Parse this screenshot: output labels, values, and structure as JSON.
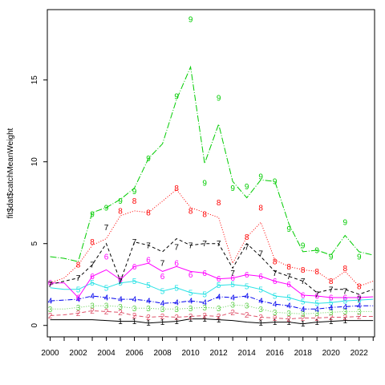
{
  "chart_data": {
    "type": "line",
    "title": "",
    "xlabel": "",
    "ylabel": "fit$dat$catchMeanWeight",
    "xlim": [
      1999.8,
      2023.1
    ],
    "ylim": [
      -0.7,
      19.3
    ],
    "grid": false,
    "legend": "none",
    "x_ticks": [
      "2000",
      "2002",
      "2004",
      "2006",
      "2008",
      "2010",
      "2012",
      "2014",
      "2016",
      "2018",
      "2020",
      "2022"
    ],
    "y_ticks": [
      "0",
      "5",
      "10",
      "15"
    ],
    "x": [
      2000,
      2001,
      2002,
      2003,
      2004,
      2005,
      2006,
      2007,
      2008,
      2009,
      2010,
      2011,
      2012,
      2013,
      2014,
      2015,
      2016,
      2017,
      2018,
      2019,
      2020,
      2021,
      2022,
      2023
    ],
    "series": [
      {
        "label": "1",
        "color": "#000000",
        "dash": "",
        "values": [
          null,
          null,
          null,
          null,
          null,
          0.25,
          0.25,
          0.15,
          0.2,
          0.25,
          0.4,
          0.4,
          0.35,
          null,
          null,
          0.15,
          0.2,
          0.2,
          0.1,
          0.2,
          0.25,
          0.3,
          null,
          null
        ],
        "line": [
          0.35,
          0.35,
          0.35,
          0.35,
          0.3,
          0.25,
          0.25,
          0.15,
          0.2,
          0.25,
          0.4,
          0.4,
          0.35,
          0.3,
          0.2,
          0.15,
          0.2,
          0.2,
          0.1,
          0.2,
          0.25,
          0.3,
          0.3,
          0.3
        ]
      },
      {
        "label": "2",
        "color": "#df536b",
        "dash": "5,3",
        "values": [
          0.6,
          null,
          0.75,
          0.9,
          0.85,
          0.8,
          0.6,
          0.5,
          0.55,
          0.5,
          0.55,
          0.6,
          0.55,
          0.8,
          0.65,
          0.5,
          0.45,
          0.4,
          0.45,
          0.45,
          0.5,
          0.5,
          0.55,
          null
        ],
        "line": [
          0.6,
          0.65,
          0.75,
          0.9,
          0.85,
          0.8,
          0.6,
          0.5,
          0.55,
          0.5,
          0.55,
          0.6,
          0.55,
          0.8,
          0.65,
          0.5,
          0.45,
          0.4,
          0.45,
          0.45,
          0.5,
          0.5,
          0.55,
          0.55
        ]
      },
      {
        "label": "3",
        "color": "#61d04f",
        "dash": "1,2",
        "values": [
          1.0,
          null,
          1.1,
          1.2,
          1.2,
          1.15,
          1.05,
          1.05,
          1.0,
          1.0,
          1.05,
          1.1,
          1.05,
          1.25,
          1.2,
          1.0,
          0.8,
          0.75,
          0.7,
          0.75,
          0.8,
          0.85,
          0.85,
          null
        ],
        "line": [
          1.0,
          1.0,
          1.1,
          1.2,
          1.2,
          1.15,
          1.05,
          1.05,
          1.0,
          1.0,
          1.05,
          1.1,
          1.05,
          1.25,
          1.2,
          1.0,
          0.8,
          0.75,
          0.7,
          0.75,
          0.8,
          0.85,
          0.85,
          0.85
        ]
      },
      {
        "label": "4",
        "color": "#2297e6",
        "dash": "6,2,1,2",
        "values": [
          1.5,
          null,
          1.6,
          1.8,
          1.7,
          1.6,
          1.6,
          1.5,
          1.35,
          1.4,
          1.5,
          1.4,
          1.75,
          1.7,
          1.8,
          1.5,
          1.3,
          1.2,
          1.0,
          1.0,
          1.1,
          1.15,
          1.2,
          null
        ],
        "line": [
          1.5,
          1.55,
          1.6,
          1.8,
          1.7,
          1.6,
          1.6,
          1.5,
          1.35,
          1.4,
          1.5,
          1.4,
          1.75,
          1.7,
          1.8,
          1.5,
          1.3,
          1.2,
          1.0,
          1.0,
          1.1,
          1.15,
          1.2,
          1.2
        ],
        "pt_color": "#0000ee",
        "line_color": "#0000ee"
      },
      {
        "label": "5",
        "color": "#28e2e5",
        "dash": "",
        "values": [
          null,
          null,
          2.2,
          2.6,
          2.3,
          2.6,
          2.7,
          2.45,
          2.1,
          2.3,
          2.0,
          1.9,
          2.45,
          2.5,
          2.4,
          2.2,
          1.8,
          1.7,
          1.45,
          1.35,
          1.4,
          1.5,
          1.55,
          null
        ],
        "line": [
          2.3,
          2.2,
          2.2,
          2.6,
          2.3,
          2.6,
          2.7,
          2.45,
          2.1,
          2.3,
          2.0,
          1.9,
          2.45,
          2.5,
          2.4,
          2.2,
          1.8,
          1.7,
          1.45,
          1.35,
          1.4,
          1.5,
          1.55,
          1.6
        ]
      },
      {
        "label": "6",
        "color": "#cd0bbc",
        "dash": "",
        "values": [
          2.6,
          null,
          1.7,
          3.0,
          4.2,
          2.8,
          3.6,
          4.0,
          3.0,
          3.8,
          3.1,
          3.2,
          2.85,
          2.9,
          3.1,
          3.0,
          2.7,
          2.5,
          1.85,
          1.8,
          1.7,
          1.7,
          1.7,
          null
        ],
        "line": [
          2.6,
          2.6,
          1.7,
          3.0,
          3.4,
          2.8,
          3.6,
          3.8,
          3.3,
          3.6,
          3.3,
          3.2,
          2.85,
          2.9,
          3.1,
          3.0,
          2.7,
          2.5,
          1.85,
          1.8,
          1.7,
          1.7,
          1.7,
          1.75
        ],
        "pt_color": "#ff00ff",
        "line_color": "#ff00ff"
      },
      {
        "label": "7",
        "color": "#000000",
        "dash": "4,3",
        "values": [
          2.5,
          null,
          2.9,
          3.7,
          6.0,
          2.7,
          5.1,
          4.9,
          3.8,
          4.8,
          4.9,
          5.0,
          5.0,
          3.2,
          4.8,
          4.4,
          3.2,
          3.0,
          2.7,
          1.9,
          2.2,
          2.1,
          1.6,
          null
        ],
        "line": [
          2.5,
          2.7,
          2.9,
          3.7,
          5.0,
          2.7,
          5.1,
          4.9,
          4.5,
          5.3,
          4.9,
          5.0,
          5.0,
          3.5,
          5.0,
          4.2,
          3.3,
          3.0,
          2.7,
          2.0,
          2.2,
          2.2,
          1.9,
          2.2
        ]
      },
      {
        "label": "8",
        "color": "#ff0000",
        "dash": "1,2",
        "values": [
          null,
          null,
          3.7,
          5.1,
          null,
          7.0,
          7.6,
          6.9,
          null,
          8.4,
          7.0,
          6.8,
          7.5,
          null,
          5.4,
          7.2,
          3.9,
          3.6,
          3.4,
          3.3,
          2.7,
          3.5,
          2.4,
          null
        ],
        "line": [
          2.6,
          2.9,
          3.7,
          4.9,
          5.3,
          6.7,
          7.0,
          6.9,
          7.6,
          8.3,
          7.2,
          6.9,
          6.6,
          3.8,
          5.4,
          6.3,
          4.0,
          3.6,
          3.4,
          3.3,
          2.7,
          3.3,
          2.4,
          2.7
        ]
      },
      {
        "label": "9",
        "color": "#00cc00",
        "dash": "8,2,1,2",
        "values": [
          null,
          null,
          null,
          6.8,
          7.2,
          7.6,
          8.2,
          10.2,
          null,
          14.0,
          18.7,
          8.7,
          13.9,
          8.4,
          8.5,
          9.1,
          8.8,
          5.9,
          4.9,
          4.6,
          4.2,
          6.3,
          4.2,
          null
        ],
        "line": [
          4.2,
          4.1,
          3.9,
          6.9,
          7.2,
          7.7,
          8.4,
          10.2,
          11.1,
          13.8,
          15.8,
          9.9,
          12.3,
          8.8,
          7.8,
          8.9,
          8.8,
          6.2,
          4.5,
          4.6,
          4.3,
          5.5,
          4.5,
          4.3
        ]
      }
    ]
  }
}
